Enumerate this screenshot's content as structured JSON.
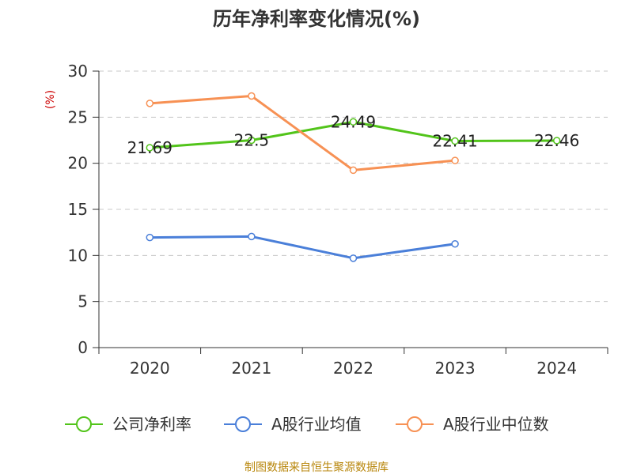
{
  "chart_data": {
    "type": "line",
    "title": "历年净利率变化情况(%)",
    "ylabel": "(%)",
    "categories": [
      "2020",
      "2021",
      "2022",
      "2023",
      "2024"
    ],
    "ylim": [
      0,
      30
    ],
    "yticks": [
      0,
      5,
      10,
      15,
      20,
      25,
      30
    ],
    "grid": true,
    "legend_position": "bottom",
    "series": [
      {
        "name": "公司净利率",
        "color": "#52c41a",
        "values": [
          21.69,
          22.5,
          24.49,
          22.41,
          22.46
        ],
        "labels": [
          "21.69",
          "22.5",
          "24.49",
          "22.41",
          "22.46"
        ]
      },
      {
        "name": "A股行业均值",
        "color": "#4a7fd9",
        "values": [
          11.95,
          12.05,
          9.7,
          11.25,
          null
        ]
      },
      {
        "name": "A股行业中位数",
        "color": "#f79154",
        "values": [
          26.5,
          27.3,
          19.25,
          20.3,
          null
        ]
      }
    ]
  },
  "source": "制图数据来自恒生聚源数据库"
}
